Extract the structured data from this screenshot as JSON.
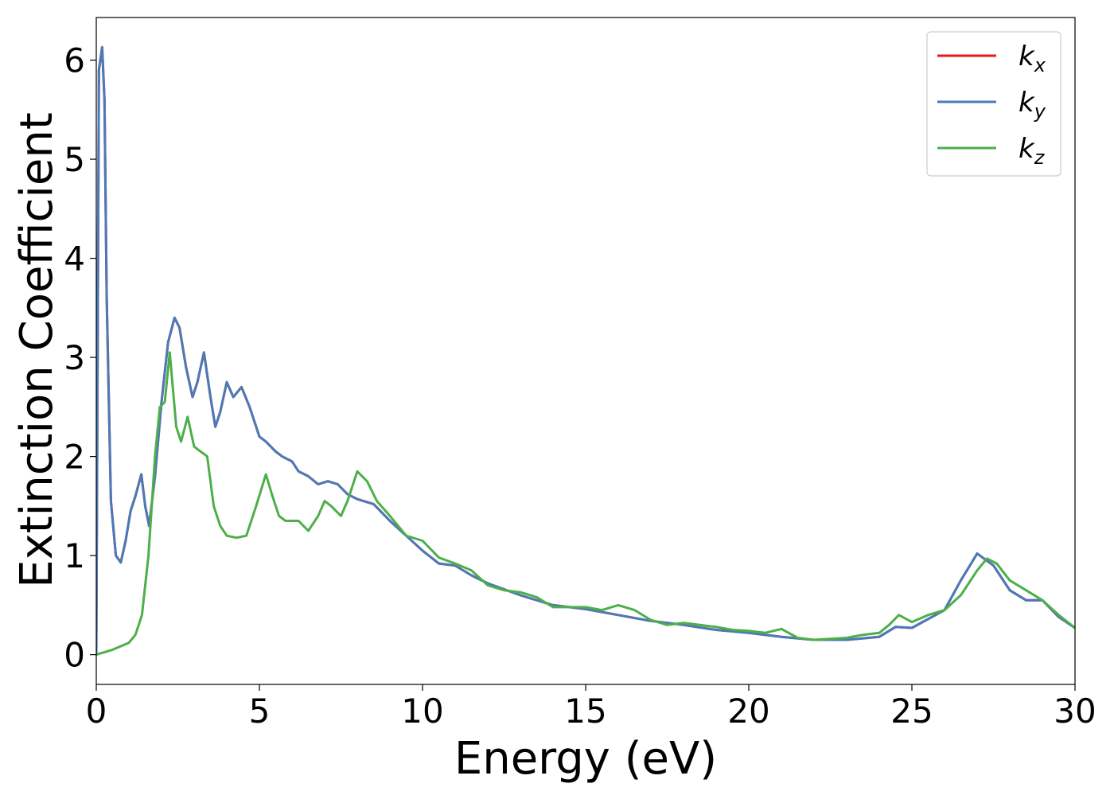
{
  "chart_data": {
    "type": "line",
    "title": "",
    "xlabel": "Energy (eV)",
    "ylabel": "Extinction Coefficient",
    "xlim": [
      0,
      30
    ],
    "ylim": [
      -0.3,
      6.43
    ],
    "xticks": [
      0,
      5,
      10,
      15,
      20,
      25,
      30
    ],
    "xtick_labels": [
      "0",
      "5",
      "10",
      "15",
      "20",
      "25",
      "30"
    ],
    "yticks": [
      0,
      1,
      2,
      3,
      4,
      5,
      6
    ],
    "ytick_labels": [
      "0",
      "1",
      "2",
      "3",
      "4",
      "5",
      "6"
    ],
    "grid": false,
    "legend_position": "top-right",
    "series": [
      {
        "key": "kx",
        "name_base": "k",
        "name_sub": "x",
        "color": "#e41a1c",
        "x": [
          0,
          0.08,
          0.18,
          0.25,
          0.32,
          0.45,
          0.6,
          0.75,
          0.9,
          1.05,
          1.2,
          1.38,
          1.5,
          1.62,
          1.8,
          2.0,
          2.2,
          2.4,
          2.55,
          2.75,
          2.95,
          3.1,
          3.3,
          3.5,
          3.65,
          3.8,
          4.0,
          4.2,
          4.45,
          4.7,
          5.0,
          5.2,
          5.5,
          5.7,
          6.0,
          6.2,
          6.5,
          6.8,
          7.1,
          7.4,
          7.7,
          8.0,
          8.5,
          9.0,
          9.5,
          10.0,
          10.5,
          11.0,
          11.5,
          12.0,
          12.5,
          13.0,
          13.5,
          14.0,
          14.5,
          15.0,
          16.0,
          17.0,
          18.0,
          19.0,
          20.0,
          21.0,
          22.0,
          23.0,
          24.0,
          24.5,
          25.0,
          25.5,
          26.0,
          26.5,
          27.0,
          27.5,
          28.0,
          28.5,
          29.0,
          29.5,
          30.0
        ],
        "y": [
          0,
          5.9,
          6.13,
          5.6,
          3.6,
          1.55,
          1.0,
          0.93,
          1.15,
          1.45,
          1.6,
          1.82,
          1.5,
          1.3,
          1.8,
          2.55,
          3.15,
          3.4,
          3.3,
          2.9,
          2.6,
          2.75,
          3.05,
          2.6,
          2.3,
          2.45,
          2.75,
          2.6,
          2.7,
          2.5,
          2.2,
          2.15,
          2.05,
          2.0,
          1.95,
          1.85,
          1.8,
          1.72,
          1.75,
          1.72,
          1.62,
          1.57,
          1.52,
          1.35,
          1.2,
          1.05,
          0.92,
          0.9,
          0.8,
          0.72,
          0.66,
          0.6,
          0.55,
          0.5,
          0.48,
          0.46,
          0.4,
          0.34,
          0.3,
          0.25,
          0.22,
          0.18,
          0.15,
          0.15,
          0.18,
          0.28,
          0.27,
          0.36,
          0.45,
          0.75,
          1.02,
          0.9,
          0.65,
          0.55,
          0.55,
          0.38,
          0.27
        ]
      },
      {
        "key": "ky",
        "name_base": "k",
        "name_sub": "y",
        "color": "#4a7ab8",
        "x": [
          0,
          0.08,
          0.18,
          0.25,
          0.32,
          0.45,
          0.6,
          0.75,
          0.9,
          1.05,
          1.2,
          1.38,
          1.5,
          1.62,
          1.8,
          2.0,
          2.2,
          2.4,
          2.55,
          2.75,
          2.95,
          3.1,
          3.3,
          3.5,
          3.65,
          3.8,
          4.0,
          4.2,
          4.45,
          4.7,
          5.0,
          5.2,
          5.5,
          5.7,
          6.0,
          6.2,
          6.5,
          6.8,
          7.1,
          7.4,
          7.7,
          8.0,
          8.5,
          9.0,
          9.5,
          10.0,
          10.5,
          11.0,
          11.5,
          12.0,
          12.5,
          13.0,
          13.5,
          14.0,
          14.5,
          15.0,
          16.0,
          17.0,
          18.0,
          19.0,
          20.0,
          21.0,
          22.0,
          23.0,
          24.0,
          24.5,
          25.0,
          25.5,
          26.0,
          26.5,
          27.0,
          27.5,
          28.0,
          28.5,
          29.0,
          29.5,
          30.0
        ],
        "y": [
          0,
          5.9,
          6.13,
          5.6,
          3.6,
          1.55,
          1.0,
          0.93,
          1.15,
          1.45,
          1.6,
          1.82,
          1.5,
          1.3,
          1.8,
          2.55,
          3.15,
          3.4,
          3.3,
          2.9,
          2.6,
          2.75,
          3.05,
          2.6,
          2.3,
          2.45,
          2.75,
          2.6,
          2.7,
          2.5,
          2.2,
          2.15,
          2.05,
          2.0,
          1.95,
          1.85,
          1.8,
          1.72,
          1.75,
          1.72,
          1.62,
          1.57,
          1.52,
          1.35,
          1.2,
          1.05,
          0.92,
          0.9,
          0.8,
          0.72,
          0.66,
          0.6,
          0.55,
          0.5,
          0.48,
          0.46,
          0.4,
          0.34,
          0.3,
          0.25,
          0.22,
          0.18,
          0.15,
          0.15,
          0.18,
          0.28,
          0.27,
          0.36,
          0.45,
          0.75,
          1.02,
          0.9,
          0.65,
          0.55,
          0.55,
          0.38,
          0.27
        ]
      },
      {
        "key": "kz",
        "name_base": "k",
        "name_sub": "z",
        "color": "#4daf4a",
        "x": [
          0,
          0.5,
          1.0,
          1.2,
          1.4,
          1.6,
          1.8,
          1.95,
          2.1,
          2.25,
          2.45,
          2.6,
          2.8,
          3.0,
          3.2,
          3.4,
          3.6,
          3.8,
          4.0,
          4.3,
          4.6,
          4.9,
          5.2,
          5.4,
          5.6,
          5.8,
          6.0,
          6.2,
          6.5,
          6.8,
          7.0,
          7.2,
          7.5,
          7.7,
          8.0,
          8.3,
          8.6,
          9.0,
          9.5,
          10.0,
          10.5,
          11.0,
          11.5,
          12.0,
          12.5,
          13.0,
          13.5,
          14.0,
          14.5,
          15.0,
          15.5,
          16.0,
          16.5,
          17.0,
          17.5,
          18.0,
          18.5,
          19.0,
          19.5,
          20.0,
          20.5,
          21.0,
          21.5,
          22.0,
          22.5,
          23.0,
          23.5,
          24.0,
          24.3,
          24.6,
          25.0,
          25.5,
          26.0,
          26.5,
          27.0,
          27.3,
          27.6,
          28.0,
          28.5,
          29.0,
          29.5,
          30.0
        ],
        "y": [
          0,
          0.05,
          0.12,
          0.2,
          0.4,
          1.0,
          2.0,
          2.5,
          2.55,
          3.05,
          2.3,
          2.15,
          2.4,
          2.1,
          2.05,
          2.0,
          1.5,
          1.3,
          1.2,
          1.18,
          1.2,
          1.5,
          1.82,
          1.6,
          1.4,
          1.35,
          1.35,
          1.35,
          1.25,
          1.4,
          1.55,
          1.5,
          1.4,
          1.55,
          1.85,
          1.75,
          1.55,
          1.4,
          1.2,
          1.15,
          0.98,
          0.92,
          0.85,
          0.7,
          0.65,
          0.63,
          0.58,
          0.48,
          0.48,
          0.48,
          0.45,
          0.5,
          0.45,
          0.35,
          0.3,
          0.32,
          0.3,
          0.28,
          0.25,
          0.24,
          0.22,
          0.26,
          0.17,
          0.15,
          0.16,
          0.17,
          0.2,
          0.22,
          0.3,
          0.4,
          0.33,
          0.4,
          0.45,
          0.6,
          0.85,
          0.97,
          0.92,
          0.75,
          0.65,
          0.55,
          0.4,
          0.27
        ]
      }
    ]
  }
}
